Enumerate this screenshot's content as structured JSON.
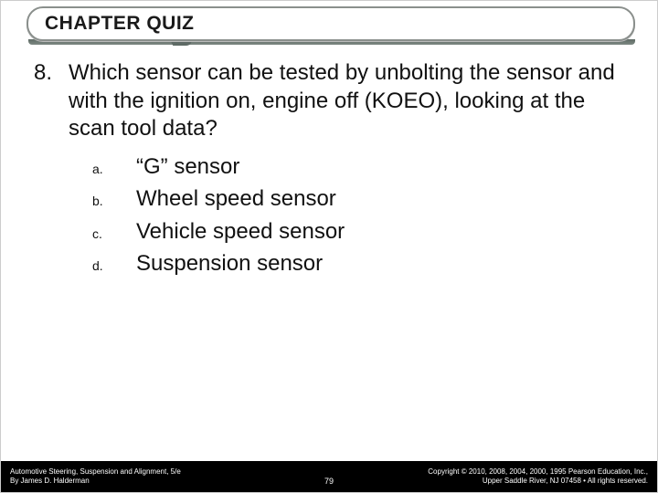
{
  "header": {
    "title": "CHAPTER QUIZ"
  },
  "question": {
    "number": "8.",
    "text": "Which sensor can be tested by unbolting the sensor and with the ignition on, engine off (KOEO), looking at the scan tool data?"
  },
  "options": [
    {
      "letter": "a.",
      "text": "“G” sensor"
    },
    {
      "letter": "b.",
      "text": "Wheel speed sensor"
    },
    {
      "letter": "c.",
      "text": "Vehicle speed sensor"
    },
    {
      "letter": "d.",
      "text": "Suspension sensor"
    }
  ],
  "footer": {
    "left_line1": "Automotive Steering, Suspension and Alignment, 5/e",
    "left_line2": "By James D. Halderman",
    "page": "79",
    "right_line1": "Copyright © 2010, 2008, 2004, 2000, 1995 Pearson Education, Inc.,",
    "right_line2": "Upper Saddle River, NJ 07458 • All rights reserved."
  },
  "colors": {
    "header_border": "#8a8f8c",
    "header_underline": "#5e6a65",
    "footer_bg": "#000000",
    "text": "#111111"
  }
}
